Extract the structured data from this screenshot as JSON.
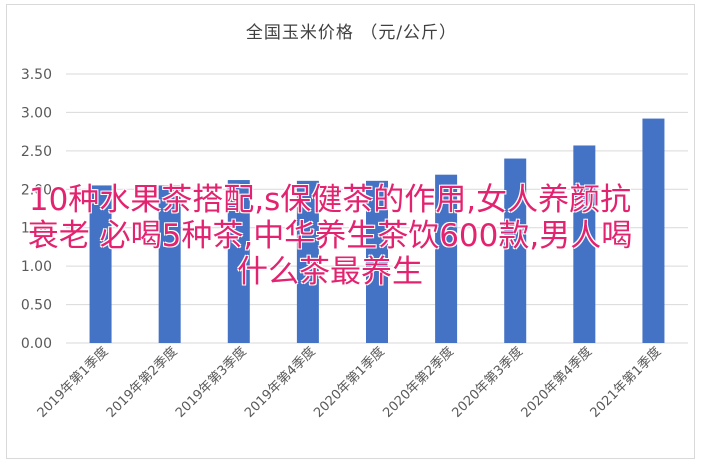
{
  "overlay_text": "10种水果茶搭配,s保健茶的作用,女人养颜抗衰老 必喝5种茶,中华养生茶饮600款,男人喝什么茶最养生",
  "colors": {
    "bar": "#4472c4",
    "grid": "#d9d9d9",
    "axis_text": "#595959",
    "title": "#404040",
    "overlay": "#e3236f"
  },
  "chart_data": {
    "type": "bar",
    "title": "全国玉米价格 （元/公斤）",
    "xlabel": "",
    "ylabel": "",
    "ylim": [
      0,
      3.5
    ],
    "yticks": [
      "0.00",
      "0.50",
      "1.00",
      "1.50",
      "2.00",
      "2.50",
      "3.00",
      "3.50"
    ],
    "grid": true,
    "legend": "none",
    "categories": [
      "2019年第1季度",
      "2019年第2季度",
      "2019年第3季度",
      "2019年第4季度",
      "2020年第1季度",
      "2020年第2季度",
      "2020年第3季度",
      "2020年第4季度",
      "2021年第1季度"
    ],
    "values": [
      2.05,
      2.05,
      2.12,
      2.11,
      2.11,
      2.19,
      2.4,
      2.57,
      2.92
    ]
  }
}
